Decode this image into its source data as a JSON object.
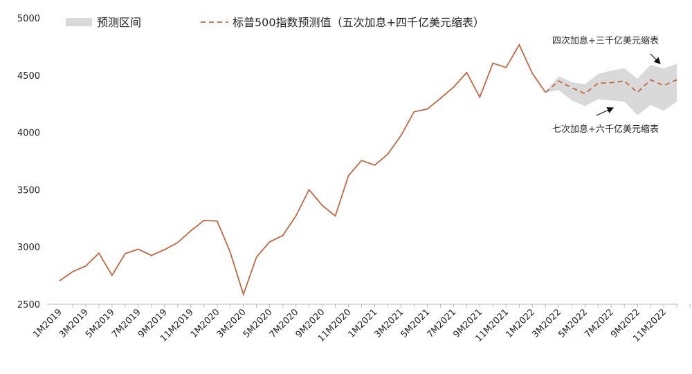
{
  "chart_data": {
    "type": "line",
    "categories": [
      "1M2019",
      null,
      "3M2019",
      null,
      "5M2019",
      null,
      "7M2019",
      null,
      "9M2019",
      null,
      "11M2019",
      null,
      "1M2020",
      null,
      "3M2020",
      null,
      "5M2020",
      null,
      "7M2020",
      null,
      "9M2020",
      null,
      "11M2020",
      null,
      "1M2021",
      null,
      "3M2021",
      null,
      "5M2021",
      null,
      "7M2021",
      null,
      "9M2021",
      null,
      "11M2021",
      null,
      "1M2022",
      null,
      "3M2022",
      null,
      "5M2022",
      null,
      "7M2022",
      null,
      "9M2022",
      null,
      "11M2022",
      null
    ],
    "series": [
      {
        "color": "#c0683f",
        "dash": false,
        "values": [
          2704,
          2784,
          2834,
          2946,
          2752,
          2942,
          2980,
          2926,
          2977,
          3038,
          3141,
          3231,
          3226,
          2954,
          2585,
          2912,
          3044,
          3100,
          3271,
          3500,
          3363,
          3270,
          3622,
          3756,
          3714,
          3811,
          3973,
          4181,
          4204,
          4298,
          4395,
          4523,
          4308,
          4605,
          4567,
          4766,
          4516,
          4350,
          null,
          null,
          null,
          null,
          null,
          null,
          null,
          null,
          null,
          null
        ]
      },
      {
        "name": "标普500指数预测值（五次加息+四千亿美元缩表）",
        "color": "#c0683f",
        "dash": true,
        "values": [
          null,
          null,
          null,
          null,
          null,
          null,
          null,
          null,
          null,
          null,
          null,
          null,
          null,
          null,
          null,
          null,
          null,
          null,
          null,
          null,
          null,
          null,
          null,
          null,
          null,
          null,
          null,
          null,
          null,
          null,
          null,
          null,
          null,
          null,
          null,
          null,
          null,
          4350,
          4450,
          4390,
          4340,
          4430,
          4435,
          4450,
          4350,
          4460,
          4410,
          4460
        ]
      }
    ],
    "band": {
      "name": "预测区间",
      "color": "#d9d9d9",
      "upper": [
        null,
        null,
        null,
        null,
        null,
        null,
        null,
        null,
        null,
        null,
        null,
        null,
        null,
        null,
        null,
        null,
        null,
        null,
        null,
        null,
        null,
        null,
        null,
        null,
        null,
        null,
        null,
        null,
        null,
        null,
        null,
        null,
        null,
        null,
        null,
        null,
        null,
        4350,
        4490,
        4440,
        4420,
        4510,
        4540,
        4560,
        4470,
        4590,
        4560,
        4600
      ],
      "lower": [
        null,
        null,
        null,
        null,
        null,
        null,
        null,
        null,
        null,
        null,
        null,
        null,
        null,
        null,
        null,
        null,
        null,
        null,
        null,
        null,
        null,
        null,
        null,
        null,
        null,
        null,
        null,
        null,
        null,
        null,
        null,
        null,
        null,
        null,
        null,
        null,
        null,
        4350,
        4370,
        4280,
        4230,
        4290,
        4280,
        4270,
        4150,
        4240,
        4190,
        4270
      ]
    },
    "annotations": [
      "四次加息+三千亿美元缩表",
      "七次加息+六千亿美元缩表"
    ],
    "ylim": [
      2500,
      5000
    ],
    "yticks": [
      2500,
      3000,
      3500,
      4000,
      4500,
      5000
    ],
    "grid": false
  }
}
